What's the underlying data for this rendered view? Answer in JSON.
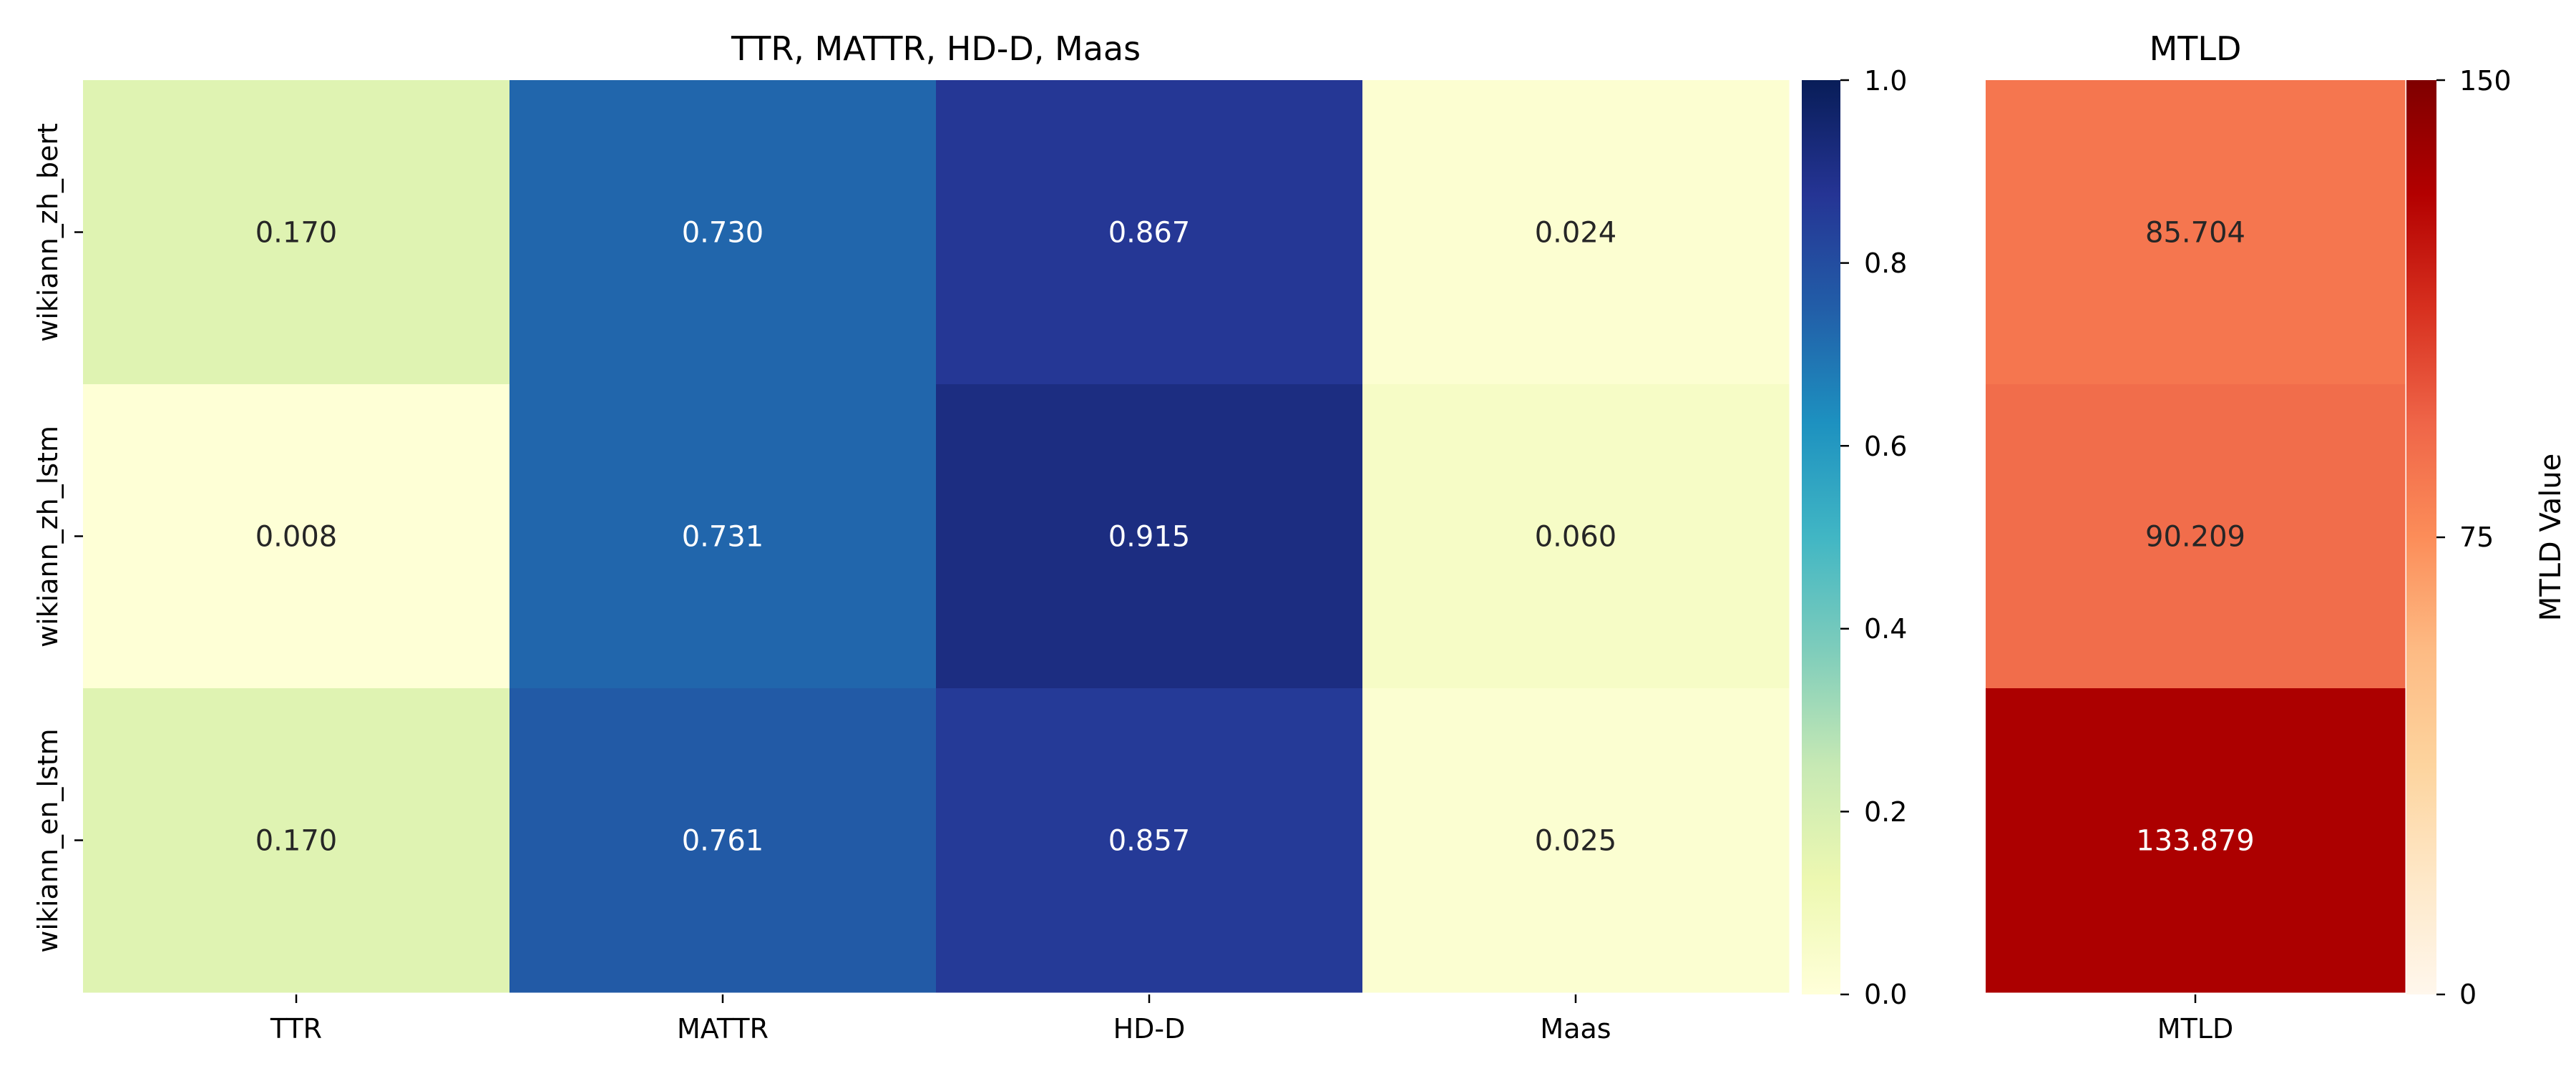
{
  "chart_data": [
    {
      "type": "heatmap",
      "title": "TTR, MATTR, HD-D, Maas",
      "rows": [
        "wikiann_zh_bert",
        "wikiann_zh_lstm",
        "wikiann_en_lstm"
      ],
      "columns": [
        "TTR",
        "MATTR",
        "HD-D",
        "Maas"
      ],
      "values": [
        [
          0.17,
          0.73,
          0.867,
          0.024
        ],
        [
          0.008,
          0.731,
          0.915,
          0.06
        ],
        [
          0.17,
          0.761,
          0.857,
          0.025
        ]
      ],
      "labels": [
        [
          "0.170",
          "0.730",
          "0.867",
          "0.024"
        ],
        [
          "0.008",
          "0.731",
          "0.915",
          "0.060"
        ],
        [
          "0.170",
          "0.761",
          "0.857",
          "0.025"
        ]
      ],
      "colormap": "YlGnBu",
      "vmin": 0,
      "vmax": 1,
      "colorbar": {
        "ticks": [
          0.0,
          0.2,
          0.4,
          0.6,
          0.8,
          1.0
        ],
        "tick_labels": [
          "0.0",
          "0.2",
          "0.4",
          "0.6",
          "0.8",
          "1.0"
        ],
        "label": ""
      }
    },
    {
      "type": "heatmap",
      "title": "MTLD",
      "rows": [
        "wikiann_zh_bert",
        "wikiann_zh_lstm",
        "wikiann_en_lstm"
      ],
      "columns": [
        "MTLD"
      ],
      "values": [
        [
          85.704
        ],
        [
          90.209
        ],
        [
          133.879
        ]
      ],
      "labels": [
        [
          "85.704"
        ],
        [
          "90.209"
        ],
        [
          "133.879"
        ]
      ],
      "colormap": "OrRd",
      "vmin": 0,
      "vmax": 150,
      "colorbar": {
        "ticks": [
          0,
          75,
          150
        ],
        "tick_labels": [
          "0",
          "75",
          "150"
        ],
        "label": "MTLD Value"
      }
    }
  ],
  "colors": {
    "text_dark": "#262626",
    "text_light": "#ffffff",
    "axis": "#000000"
  }
}
